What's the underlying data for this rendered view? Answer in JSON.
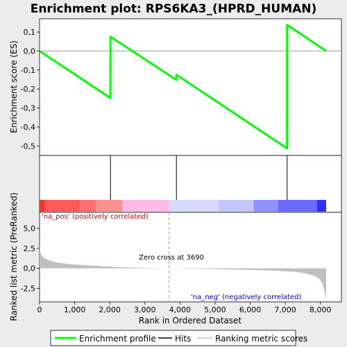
{
  "chart_data": {
    "type": "line",
    "title": "Enrichment plot: RPS6KA3_(HPRD_HUMAN)",
    "top_panel": {
      "ylabel": "Enrichment score (ES)",
      "ylim": [
        -0.55,
        0.17
      ],
      "yticks": [
        0.1,
        0.0,
        -0.1,
        -0.2,
        -0.3,
        -0.4,
        -0.5
      ],
      "ytick_labels": [
        "0,1",
        "0,0",
        "-0,1",
        "-0,2",
        "-0,3",
        "-0,4",
        "-0,5"
      ],
      "series": [
        {
          "name": "Enrichment profile",
          "color": "#00ff00",
          "x": [
            0,
            2019,
            2020,
            3898,
            3899,
            7051,
            7052,
            8164
          ],
          "y": [
            0.0,
            -0.248,
            0.075,
            -0.152,
            -0.125,
            -0.513,
            0.137,
            0.0
          ]
        }
      ],
      "zero_line": true
    },
    "hits_panel": {
      "hit_positions": [
        2020,
        3899,
        7052
      ],
      "color_bar": {
        "segments": [
          {
            "x0": 0,
            "x1": 150,
            "color": "#ff3030"
          },
          {
            "x0": 150,
            "x1": 1150,
            "color": "#ff5a5a"
          },
          {
            "x0": 1150,
            "x1": 1600,
            "color": "#ff7070"
          },
          {
            "x0": 1600,
            "x1": 2360,
            "color": "#ff9090"
          },
          {
            "x0": 2360,
            "x1": 3690,
            "color": "#ffbbe6"
          },
          {
            "x0": 3690,
            "x1": 5100,
            "color": "#d8d8ff"
          },
          {
            "x0": 5100,
            "x1": 6100,
            "color": "#c4c4ff"
          },
          {
            "x0": 6100,
            "x1": 6800,
            "color": "#9090ff"
          },
          {
            "x0": 6800,
            "x1": 7900,
            "color": "#6b6bff"
          },
          {
            "x0": 7900,
            "x1": 8164,
            "color": "#3030ff"
          }
        ]
      }
    },
    "bottom_panel": {
      "ylabel": "Ranked list metric (PreRanked)",
      "xlabel": "Rank in Ordered Dataset",
      "xlim": [
        0,
        8600
      ],
      "ylim": [
        -4.2,
        7.0
      ],
      "xticks": [
        0,
        1000,
        2000,
        3000,
        4000,
        5000,
        6000,
        7000,
        8000
      ],
      "xtick_labels": [
        "0",
        "1,000",
        "2,000",
        "3,000",
        "4,000",
        "5,000",
        "6,000",
        "7,000",
        "8,000"
      ],
      "yticks": [
        5.0,
        2.5,
        0.0,
        -2.5
      ],
      "ytick_labels": [
        "5,0",
        "2,5",
        "0,0",
        "-2,5"
      ],
      "metric_profile": {
        "name": "Ranking metric scores",
        "color": "#c0c0c0",
        "x": [
          0,
          20,
          60,
          150,
          300,
          500,
          800,
          1100,
          1500,
          2000,
          2500,
          3000,
          3690,
          4200,
          5000,
          6000,
          6800,
          7300,
          7600,
          7800,
          7950,
          8050,
          8100,
          8140,
          8164
        ],
        "y": [
          2.8,
          2.1,
          1.6,
          1.25,
          0.95,
          0.72,
          0.55,
          0.44,
          0.34,
          0.22,
          0.12,
          0.05,
          0.0,
          -0.04,
          -0.1,
          -0.2,
          -0.3,
          -0.45,
          -0.65,
          -0.9,
          -1.25,
          -1.8,
          -2.6,
          -3.3,
          -4.0
        ]
      },
      "zero_cross": {
        "rank": 3690,
        "text": "Zero cross at 3690"
      },
      "pos_label": {
        "text": "'na_pos' (positively correlated)",
        "color": "#cc0000"
      },
      "neg_label": {
        "text": "'na_neg' (negatively correlated)",
        "color": "#0000cc"
      }
    },
    "legend": {
      "placement": "bottom",
      "entries": [
        {
          "label": "Enrichment profile",
          "color": "#00ff00"
        },
        {
          "label": "Hits",
          "color": "#000000"
        },
        {
          "label": "Ranking metric scores",
          "color": "#c0c0c0"
        }
      ]
    }
  }
}
